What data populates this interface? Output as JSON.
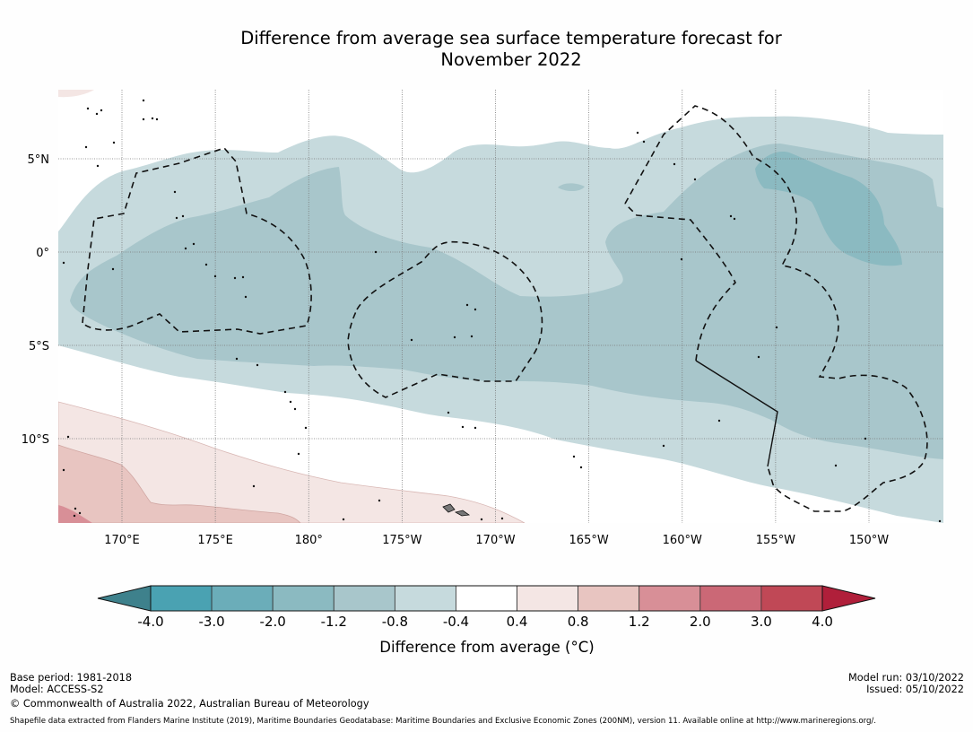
{
  "title": {
    "line1": "Difference from average sea surface temperature forecast for",
    "line2": "November 2022"
  },
  "map": {
    "lon_range": [
      166.5,
      -144.8
    ],
    "lat_range": [
      -14.5,
      8.7
    ],
    "lon_ticks": [
      {
        "value": 170,
        "label": "170°E"
      },
      {
        "value": 175,
        "label": "175°E"
      },
      {
        "value": 180,
        "label": "180°"
      },
      {
        "value": 185,
        "label": "175°W"
      },
      {
        "value": 190,
        "label": "170°W"
      },
      {
        "value": 195,
        "label": "165°W"
      },
      {
        "value": 200,
        "label": "160°W"
      },
      {
        "value": 205,
        "label": "155°W"
      },
      {
        "value": 210,
        "label": "150°W"
      }
    ],
    "lat_ticks": [
      {
        "value": 5,
        "label": "5°N"
      },
      {
        "value": 0,
        "label": "0°"
      },
      {
        "value": -5,
        "label": "5°S"
      },
      {
        "value": -10,
        "label": "10°S"
      }
    ],
    "gridlines": true,
    "features": [
      "sst-anomaly-contours",
      "eez-boundaries-dashed",
      "coastlines",
      "boundary-line-solid"
    ]
  },
  "colorbar": {
    "title": "Difference from average (°C)",
    "extend": "both",
    "levels": [
      "-4.0",
      "-3.0",
      "-2.0",
      "-1.2",
      "-0.8",
      "-0.4",
      "0.4",
      "0.8",
      "1.2",
      "2.0",
      "3.0",
      "4.0"
    ],
    "colors": [
      "#4aa2b2",
      "#6badb9",
      "#8bbac1",
      "#a8c6cb",
      "#c6dadd",
      "#ffffff",
      "#f4e6e4",
      "#e8c5c1",
      "#d88f97",
      "#cb6876",
      "#c04856"
    ],
    "under_color": "#3e818c",
    "over_color": "#b01f3a"
  },
  "chart_data": {
    "type": "heatmap",
    "title": "Difference from average sea surface temperature forecast for November 2022",
    "xlabel": "Longitude",
    "ylabel": "Latitude",
    "x_ticks": [
      "170°E",
      "175°E",
      "180°",
      "175°W",
      "170°W",
      "165°W",
      "160°W",
      "155°W",
      "150°W"
    ],
    "y_ticks": [
      "5°N",
      "0°",
      "5°S",
      "10°S"
    ],
    "legend_title": "Difference from average (°C)",
    "legend_levels": [
      -4.0,
      -3.0,
      -2.0,
      -1.2,
      -0.8,
      -0.4,
      0.4,
      0.8,
      1.2,
      2.0,
      3.0,
      4.0
    ],
    "legend_placement": "bottom",
    "regions": [
      {
        "range": "-0.8 to -0.4",
        "description": "broad equatorial cool band ~7°N to ~10°S"
      },
      {
        "range": "-1.2 to -0.8",
        "description": "core equatorial band ~4°N to ~8°S, widening east"
      },
      {
        "range": "-2.0 to -1.2",
        "description": "patch near 155°W–147°W, 1°S–5°N"
      },
      {
        "range": "0.4 to 0.8",
        "description": "south-west corner, south of ~9°S"
      },
      {
        "range": "0.8 to 1.2",
        "description": "south-west corner, south of ~11°S, west of 180°"
      },
      {
        "range": "1.2 to 2.0",
        "description": "far south-west corner near 167°E, 14°S"
      }
    ]
  },
  "footer": {
    "base_period": "Base period: 1981-2018",
    "model": "Model: ACCESS-S2",
    "copyright": "© Commonwealth of Australia 2022, Australian Bureau of Meteorology",
    "model_run": "Model run: 03/10/2022",
    "issued": "Issued: 05/10/2022",
    "shapefile": "Shapefile data extracted from Flanders Marine Institute (2019), Maritime Boundaries Geodatabase: Maritime Boundaries and Exclusive Economic Zones (200NM), version 11. Available online at http://www.marineregions.org/."
  }
}
